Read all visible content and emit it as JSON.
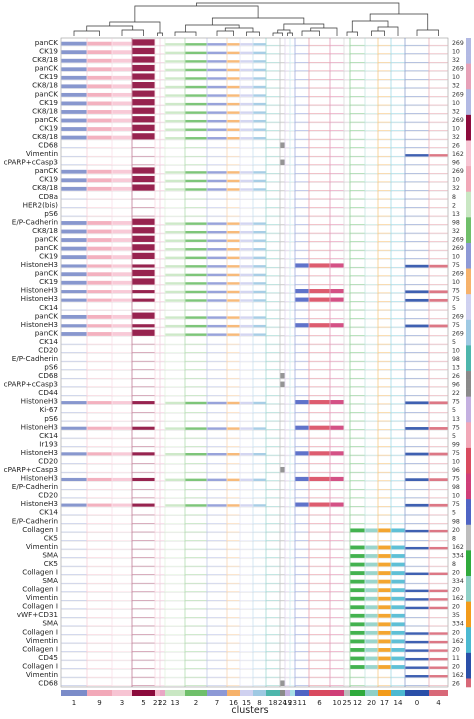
{
  "chart_data": {
    "type": "heatmap",
    "xlabel": "clusters",
    "dendrogram": "top",
    "clusters": [
      {
        "label": "1",
        "color": "#7b8cc9"
      },
      {
        "label": "9",
        "color": "#f2a8b8"
      },
      {
        "label": "3",
        "color": "#f7c4d3"
      },
      {
        "label": "5",
        "color": "#8c0b3c"
      },
      {
        "label": "21",
        "color": "#f5b8cb"
      },
      {
        "label": "22",
        "color": "#e9a6c5"
      },
      {
        "label": "13",
        "color": "#c9e7c3"
      },
      {
        "label": "2",
        "color": "#6fbf6a"
      },
      {
        "label": "7",
        "color": "#8d99d6"
      },
      {
        "label": "16",
        "color": "#f6b26b"
      },
      {
        "label": "15",
        "color": "#cfd1f0"
      },
      {
        "label": "8",
        "color": "#9ec9e3"
      },
      {
        "label": "18",
        "color": "#4db6ac"
      },
      {
        "label": "24",
        "color": "#8a8a8a"
      },
      {
        "label": "19",
        "color": "#c4b0e0"
      },
      {
        "label": "23",
        "color": "#a7dfe6"
      },
      {
        "label": "11",
        "color": "#4f64c4"
      },
      {
        "label": "6",
        "color": "#d94a5f"
      },
      {
        "label": "10",
        "color": "#cf3e78"
      },
      {
        "label": "25",
        "color": "#bdbdbd"
      },
      {
        "label": "12",
        "color": "#2faa3c"
      },
      {
        "label": "20",
        "color": "#8fd0c7"
      },
      {
        "label": "17",
        "color": "#f29b1a"
      },
      {
        "label": "14",
        "color": "#4cb9d1"
      },
      {
        "label": "0",
        "color": "#2a4fa8"
      },
      {
        "label": "4",
        "color": "#d86878"
      }
    ],
    "genes": [
      {
        "name": "panCK",
        "group": "10",
        "gcolor": "#b2b9e3",
        "vmax": "269"
      },
      {
        "name": "CK19",
        "group": "10",
        "gcolor": "#b2b9e3",
        "vmax": "10"
      },
      {
        "name": "CK8/18",
        "group": "10",
        "gcolor": "#b2b9e3",
        "vmax": "32"
      },
      {
        "name": "panCK",
        "group": "11",
        "gcolor": "#e7a1b8",
        "vmax": "269"
      },
      {
        "name": "CK19",
        "group": "11",
        "gcolor": "#e7a1b8",
        "vmax": "10"
      },
      {
        "name": "CK8/18",
        "group": "11",
        "gcolor": "#e7a1b8",
        "vmax": "32"
      },
      {
        "name": "panCK",
        "group": "12",
        "gcolor": "#b2b9e3",
        "vmax": "269"
      },
      {
        "name": "CK19",
        "group": "12",
        "gcolor": "#b2b9e3",
        "vmax": "10"
      },
      {
        "name": "CK8/18",
        "group": "12",
        "gcolor": "#b2b9e3",
        "vmax": "32"
      },
      {
        "name": "panCK",
        "group": "13",
        "gcolor": "#8c0b3c",
        "vmax": "269"
      },
      {
        "name": "CK19",
        "group": "13",
        "gcolor": "#8c0b3c",
        "vmax": "10"
      },
      {
        "name": "CK8/18",
        "group": "13",
        "gcolor": "#8c0b3c",
        "vmax": "32"
      },
      {
        "name": "CD68",
        "group": "14",
        "gcolor": "#f7c4d3",
        "vmax": "26"
      },
      {
        "name": "Vimentin",
        "group": "14",
        "gcolor": "#f7c4d3",
        "vmax": "162"
      },
      {
        "name": "cPARP+cCasp3",
        "group": "14",
        "gcolor": "#f7c4d3",
        "vmax": "96"
      },
      {
        "name": "panCK",
        "group": "15",
        "gcolor": "#f2a8b8",
        "vmax": "269"
      },
      {
        "name": "CK19",
        "group": "15",
        "gcolor": "#f2a8b8",
        "vmax": "10"
      },
      {
        "name": "CK8/18",
        "group": "15",
        "gcolor": "#f2a8b8",
        "vmax": "32"
      },
      {
        "name": "CD8a",
        "group": "16",
        "gcolor": "#c9e7c3",
        "vmax": "8"
      },
      {
        "name": "HER2(bis)",
        "group": "16",
        "gcolor": "#c9e7c3",
        "vmax": "2"
      },
      {
        "name": "pS6",
        "group": "16",
        "gcolor": "#c9e7c3",
        "vmax": "13"
      },
      {
        "name": "E/P-Cadherin",
        "group": "17",
        "gcolor": "#6fbf6a",
        "vmax": "98"
      },
      {
        "name": "CK8/18",
        "group": "17",
        "gcolor": "#6fbf6a",
        "vmax": "32"
      },
      {
        "name": "panCK",
        "group": "17",
        "gcolor": "#6fbf6a",
        "vmax": "269"
      },
      {
        "name": "panCK",
        "group": "18",
        "gcolor": "#8d99d6",
        "vmax": "269"
      },
      {
        "name": "CK19",
        "group": "18",
        "gcolor": "#8d99d6",
        "vmax": "10"
      },
      {
        "name": "HistoneH3",
        "group": "18",
        "gcolor": "#8d99d6",
        "vmax": "75"
      },
      {
        "name": "panCK",
        "group": "19",
        "gcolor": "#f6b26b",
        "vmax": "269"
      },
      {
        "name": "CK19",
        "group": "19",
        "gcolor": "#f6b26b",
        "vmax": "10"
      },
      {
        "name": "HistoneH3",
        "group": "19",
        "gcolor": "#f6b26b",
        "vmax": "75"
      },
      {
        "name": "HistoneH3",
        "group": "20",
        "gcolor": "#cfd1f0",
        "vmax": "75"
      },
      {
        "name": "CK14",
        "group": "20",
        "gcolor": "#cfd1f0",
        "vmax": "5"
      },
      {
        "name": "panCK",
        "group": "20",
        "gcolor": "#cfd1f0",
        "vmax": "269"
      },
      {
        "name": "HistoneH3",
        "group": "21",
        "gcolor": "#9ec9e3",
        "vmax": "75"
      },
      {
        "name": "panCK",
        "group": "21",
        "gcolor": "#9ec9e3",
        "vmax": "269"
      },
      {
        "name": "CK14",
        "group": "21",
        "gcolor": "#9ec9e3",
        "vmax": "5"
      },
      {
        "name": "CD20",
        "group": "22",
        "gcolor": "#4db6ac",
        "vmax": "10"
      },
      {
        "name": "E/P-Cadherin",
        "group": "22",
        "gcolor": "#4db6ac",
        "vmax": "98"
      },
      {
        "name": "pS6",
        "group": "22",
        "gcolor": "#4db6ac",
        "vmax": "13"
      },
      {
        "name": "CD68",
        "group": "23",
        "gcolor": "#8a8a8a",
        "vmax": "26"
      },
      {
        "name": "cPARP+cCasp3",
        "group": "23",
        "gcolor": "#8a8a8a",
        "vmax": "96"
      },
      {
        "name": "CD44",
        "group": "23",
        "gcolor": "#8a8a8a",
        "vmax": "22"
      },
      {
        "name": "HistoneH3",
        "group": "24",
        "gcolor": "#c4b0e0",
        "vmax": "75"
      },
      {
        "name": "Ki-67",
        "group": "24",
        "gcolor": "#c4b0e0",
        "vmax": "5"
      },
      {
        "name": "pS6",
        "group": "24",
        "gcolor": "#c4b0e0",
        "vmax": "13"
      },
      {
        "name": "HistoneH3",
        "group": "25",
        "gcolor": "#f2a8b8",
        "vmax": "75"
      },
      {
        "name": "CK14",
        "group": "25",
        "gcolor": "#f2a8b8",
        "vmax": "5"
      },
      {
        "name": "Ir193",
        "group": "25",
        "gcolor": "#f2a8b8",
        "vmax": "99"
      },
      {
        "name": "HistoneH3",
        "group": "26",
        "gcolor": "#d94a5f",
        "vmax": "75"
      },
      {
        "name": "CD20",
        "group": "26",
        "gcolor": "#d94a5f",
        "vmax": "10"
      },
      {
        "name": "cPARP+cCasp3",
        "group": "26",
        "gcolor": "#d94a5f",
        "vmax": "96"
      },
      {
        "name": "HistoneH3",
        "group": "27",
        "gcolor": "#cf3e78",
        "vmax": "75"
      },
      {
        "name": "E/P-Cadherin",
        "group": "27",
        "gcolor": "#cf3e78",
        "vmax": "98"
      },
      {
        "name": "CD20",
        "group": "27",
        "gcolor": "#cf3e78",
        "vmax": "10"
      },
      {
        "name": "HistoneH3",
        "group": "28",
        "gcolor": "#4f64c4",
        "vmax": "75"
      },
      {
        "name": "CK14",
        "group": "28",
        "gcolor": "#4f64c4",
        "vmax": "5"
      },
      {
        "name": "E/P-Cadherin",
        "group": "28",
        "gcolor": "#4f64c4",
        "vmax": "98"
      },
      {
        "name": "Collagen I",
        "group": "29",
        "gcolor": "#bdbdbd",
        "vmax": "20"
      },
      {
        "name": "CK5",
        "group": "29",
        "gcolor": "#bdbdbd",
        "vmax": "8"
      },
      {
        "name": "Vimentin",
        "group": "29",
        "gcolor": "#bdbdbd",
        "vmax": "162"
      },
      {
        "name": "SMA",
        "group": "30",
        "gcolor": "#2faa3c",
        "vmax": "334"
      },
      {
        "name": "CK5",
        "group": "30",
        "gcolor": "#2faa3c",
        "vmax": "8"
      },
      {
        "name": "Collagen I",
        "group": "30",
        "gcolor": "#2faa3c",
        "vmax": "20"
      },
      {
        "name": "SMA",
        "group": "31",
        "gcolor": "#8fd0c7",
        "vmax": "334"
      },
      {
        "name": "Collagen I",
        "group": "31",
        "gcolor": "#8fd0c7",
        "vmax": "20"
      },
      {
        "name": "Vimentin",
        "group": "31",
        "gcolor": "#8fd0c7",
        "vmax": "162"
      },
      {
        "name": "Collagen I",
        "group": "32",
        "gcolor": "#f29b1a",
        "vmax": "20"
      },
      {
        "name": "vWF+CD31",
        "group": "32",
        "gcolor": "#f29b1a",
        "vmax": "35"
      },
      {
        "name": "SMA",
        "group": "32",
        "gcolor": "#f29b1a",
        "vmax": "334"
      },
      {
        "name": "Collagen I",
        "group": "33",
        "gcolor": "#4cb9d1",
        "vmax": "20"
      },
      {
        "name": "Vimentin",
        "group": "33",
        "gcolor": "#4cb9d1",
        "vmax": "162"
      },
      {
        "name": "Collagen I",
        "group": "33",
        "gcolor": "#4cb9d1",
        "vmax": "20"
      },
      {
        "name": "CD45",
        "group": "34",
        "gcolor": "#2a4fa8",
        "vmax": "11"
      },
      {
        "name": "Collagen I",
        "group": "34",
        "gcolor": "#2a4fa8",
        "vmax": "20"
      },
      {
        "name": "Vimentin",
        "group": "34",
        "gcolor": "#2a4fa8",
        "vmax": "162"
      },
      {
        "name": "CD68",
        "group": "35",
        "gcolor": "#d86878",
        "vmax": "26"
      }
    ],
    "grid": false,
    "legend": "none"
  }
}
